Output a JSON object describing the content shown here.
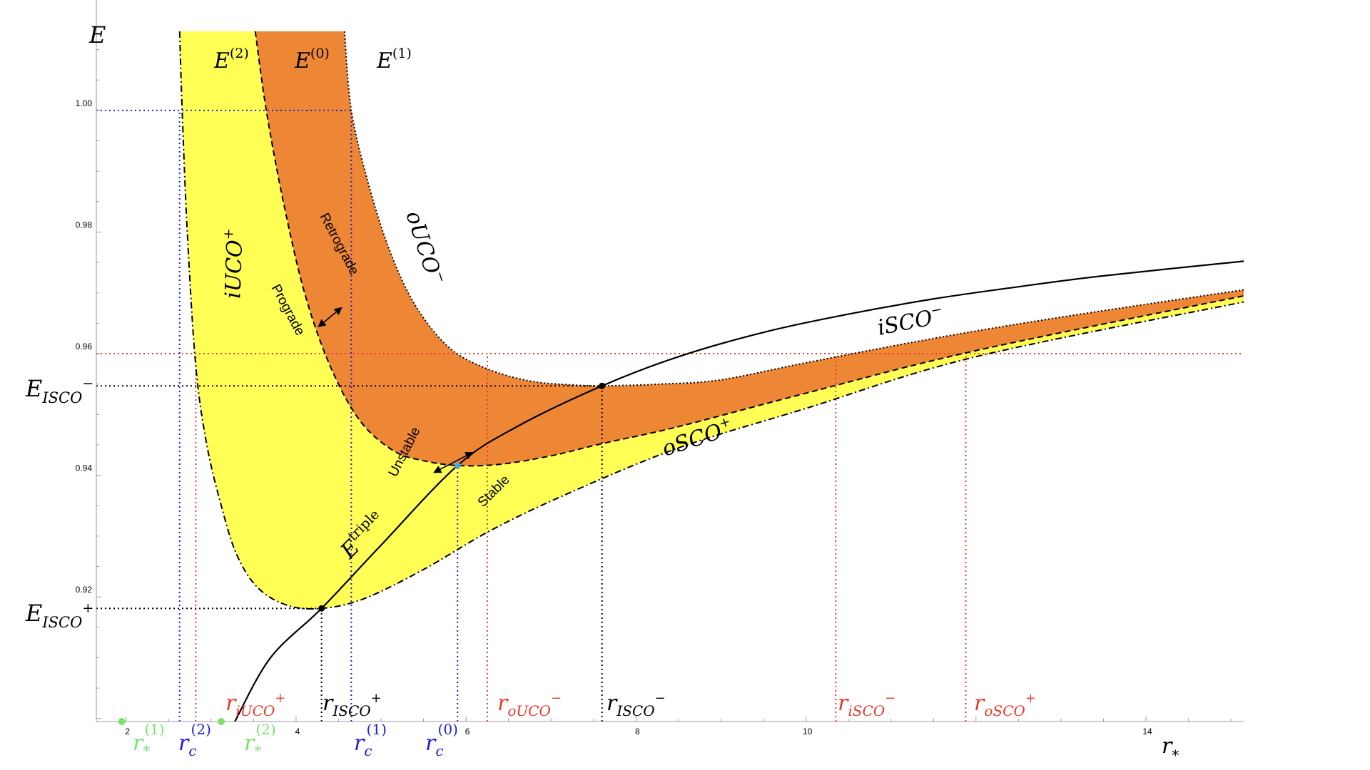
{
  "chart_data": {
    "type": "line",
    "title": "",
    "xlabel": "r*",
    "ylabel": "E",
    "xlim": [
      1.65,
      15.15
    ],
    "ylim": [
      0.8995,
      1.013
    ],
    "grid": false,
    "x_ticks": [
      2,
      4,
      6,
      8,
      10,
      14
    ],
    "y_ticks": [
      0.92,
      0.94,
      0.96,
      0.98,
      1.0
    ],
    "x_tick_labels": [
      "2",
      "4",
      "6",
      "8",
      "10",
      "14"
    ],
    "y_tick_labels": [
      "0.92",
      "0.94",
      "0.96",
      "0.98",
      "1.00"
    ],
    "colors": {
      "orange_fill": "#ee8735",
      "yellow_fill": "#ffff55",
      "black": "#000000",
      "red": "#e53a2a",
      "blue": "#1c1cd6",
      "green": "#7ae26c",
      "light_blue": "#4da3e6"
    },
    "series": [
      {
        "name": "E^(0)",
        "style": "dashed",
        "points": [
          [
            3.52,
            1.013
          ],
          [
            3.65,
            1.0
          ],
          [
            3.85,
            0.985
          ],
          [
            4.1,
            0.97
          ],
          [
            4.4,
            0.958
          ],
          [
            4.75,
            0.949
          ],
          [
            5.15,
            0.944
          ],
          [
            5.5,
            0.9424
          ],
          [
            5.9,
            0.9416
          ],
          [
            6.4,
            0.9418
          ],
          [
            7.0,
            0.9432
          ],
          [
            7.6,
            0.9452
          ],
          [
            8.5,
            0.948
          ],
          [
            10.0,
            0.9535
          ],
          [
            12.0,
            0.9605
          ],
          [
            15.15,
            0.9695
          ]
        ]
      },
      {
        "name": "E^(1)",
        "style": "dotted",
        "points": [
          [
            4.57,
            1.013
          ],
          [
            4.65,
            1.0
          ],
          [
            4.85,
            0.988
          ],
          [
            5.1,
            0.977
          ],
          [
            5.4,
            0.968
          ],
          [
            5.8,
            0.961
          ],
          [
            6.25,
            0.9575
          ],
          [
            6.75,
            0.9555
          ],
          [
            7.2,
            0.9549
          ],
          [
            7.6,
            0.9547
          ],
          [
            8.3,
            0.955
          ],
          [
            9.0,
            0.9557
          ],
          [
            10.0,
            0.9585
          ],
          [
            11.5,
            0.9625
          ],
          [
            13.0,
            0.966
          ],
          [
            15.15,
            0.9705
          ]
        ]
      },
      {
        "name": "E^(2)",
        "style": "dash-dot",
        "points": [
          [
            2.63,
            1.013
          ],
          [
            2.66,
            1.0
          ],
          [
            2.72,
            0.98
          ],
          [
            2.82,
            0.958
          ],
          [
            2.95,
            0.945
          ],
          [
            3.12,
            0.935
          ],
          [
            3.3,
            0.927
          ],
          [
            3.55,
            0.9215
          ],
          [
            3.9,
            0.9186
          ],
          [
            4.3,
            0.9181
          ],
          [
            4.8,
            0.9197
          ],
          [
            5.5,
            0.9245
          ],
          [
            6.3,
            0.931
          ],
          [
            7.2,
            0.937
          ],
          [
            8.5,
            0.9445
          ],
          [
            10.0,
            0.951
          ],
          [
            12.0,
            0.9595
          ],
          [
            15.15,
            0.9685
          ]
        ]
      },
      {
        "name": "E^triple",
        "style": "solid",
        "points": [
          [
            3.28,
            0.8995
          ],
          [
            3.7,
            0.91
          ],
          [
            4.3,
            0.9181
          ],
          [
            5.0,
            0.9285
          ],
          [
            5.9,
            0.9416
          ],
          [
            6.6,
            0.948
          ],
          [
            7.6,
            0.9547
          ],
          [
            8.5,
            0.9595
          ],
          [
            9.5,
            0.9635
          ],
          [
            10.5,
            0.9665
          ],
          [
            11.5,
            0.969
          ],
          [
            12.5,
            0.971
          ],
          [
            13.5,
            0.9728
          ],
          [
            15.15,
            0.9752
          ]
        ]
      }
    ],
    "guide_lines": {
      "horizontal": [
        {
          "y": 1.0,
          "x_to": 4.65,
          "color": "blue"
        },
        {
          "y": 0.96,
          "x_to": 15.15,
          "color": "red"
        },
        {
          "y": 0.9547,
          "x_to": 7.6,
          "color": "black"
        },
        {
          "y": 0.9181,
          "x_to": 4.3,
          "color": "black"
        }
      ],
      "vertical": [
        {
          "x": 2.63,
          "y_to": 1.0,
          "color": "blue",
          "label": "r_c^(2)"
        },
        {
          "x": 4.65,
          "y_to": 1.0,
          "color": "blue",
          "label": "r_c^(1)"
        },
        {
          "x": 5.9,
          "y_to": 0.9416,
          "color": "blue",
          "label": "r_c^(0)"
        },
        {
          "x": 2.82,
          "y_to": 0.96,
          "color": "red",
          "label": "r_iUCO+"
        },
        {
          "x": 6.25,
          "y_to": 0.96,
          "color": "red",
          "label": "r_oUCO-"
        },
        {
          "x": 10.35,
          "y_to": 0.96,
          "color": "red",
          "label": "r_iSCO-"
        },
        {
          "x": 11.88,
          "y_to": 0.96,
          "color": "red",
          "label": "r_oSCO+"
        },
        {
          "x": 4.3,
          "y_to": 0.9181,
          "color": "black",
          "label": "r_ISCO+"
        },
        {
          "x": 7.6,
          "y_to": 0.9547,
          "color": "black",
          "label": "r_ISCO-"
        }
      ]
    },
    "marked_points": [
      {
        "name": "ISCO+",
        "x": 4.3,
        "y": 0.9181,
        "color": "black"
      },
      {
        "name": "ISCO-",
        "x": 7.6,
        "y": 0.9547,
        "color": "black"
      },
      {
        "name": "E0-min",
        "x": 5.9,
        "y": 0.9416,
        "color": "light_blue"
      },
      {
        "name": "r*(1)",
        "x": 1.95,
        "y": 0.8995,
        "color": "green"
      },
      {
        "name": "r*(2)",
        "x": 3.12,
        "y": 0.8995,
        "color": "green"
      }
    ]
  },
  "labels": {
    "axis_y": "E",
    "axis_x": {
      "base": "r",
      "sub": "*"
    },
    "curve_E2": {
      "base": "E",
      "sup": "(2)"
    },
    "curve_E0": {
      "base": "E",
      "sup": "(0)"
    },
    "curve_E1": {
      "base": "E",
      "sup": "(1)"
    },
    "curve_triple": {
      "base": "E",
      "sup": "triple"
    },
    "oUCO_minus": {
      "base": "oUCO",
      "sup": "−"
    },
    "iUCO_plus": {
      "base": "iUCO",
      "sup": "+"
    },
    "iSCO_minus": {
      "base": "iSCO",
      "sup": "−"
    },
    "oSCO_plus": {
      "base": "oSCO",
      "sup": "+"
    },
    "retrograde": "Retrograde",
    "prograde": "Prograde",
    "unstable": "Unstable",
    "stable": "Stable",
    "E_ISCO_minus": {
      "base": "E",
      "sub": "ISCO",
      "sup": "−"
    },
    "E_ISCO_plus": {
      "base": "E",
      "sub": "ISCO",
      "sup": "+"
    },
    "r_iUCO_plus": {
      "base": "r",
      "sub": "iUCO",
      "sup": "+"
    },
    "r_ISCO_plus": {
      "base": "r",
      "sub": "ISCO",
      "sup": "+"
    },
    "r_oUCO_minus": {
      "base": "r",
      "sub": "oUCO",
      "sup": "−"
    },
    "r_ISCO_minus": {
      "base": "r",
      "sub": "ISCO",
      "sup": "−"
    },
    "r_iSCO_minus": {
      "base": "r",
      "sub": "iSCO",
      "sup": "−"
    },
    "r_oSCO_plus": {
      "base": "r",
      "sub": "oSCO",
      "sup": "+"
    },
    "r_star_1": {
      "base": "r",
      "sub": "*",
      "sup": "(1)"
    },
    "r_star_2": {
      "base": "r",
      "sub": "*",
      "sup": "(2)"
    },
    "r_c_2": {
      "base": "r",
      "sub": "c",
      "sup": "(2)"
    },
    "r_c_1": {
      "base": "r",
      "sub": "c",
      "sup": "(1)"
    },
    "r_c_0": {
      "base": "r",
      "sub": "c",
      "sup": "(0)"
    }
  }
}
